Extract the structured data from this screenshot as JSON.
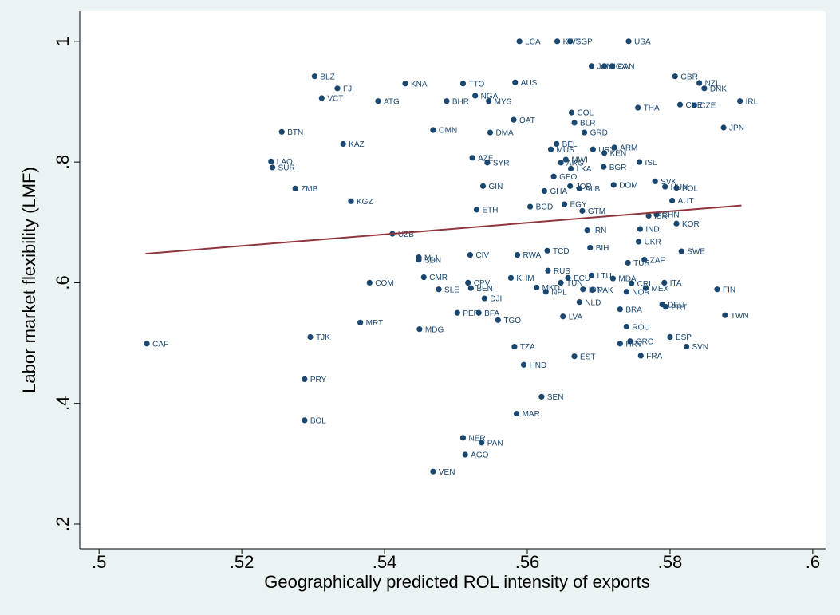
{
  "chart_data": {
    "type": "scatter",
    "x_label": "Geographically predicted ROL intensity of exports",
    "y_label": "Labor market flexibility (LMF)",
    "color": "#1a476f",
    "xlim": [
      0.4973,
      0.6018
    ],
    "ylim": [
      0.159,
      1.05
    ],
    "xticks": [
      {
        "value": 0.5,
        "label": ".5"
      },
      {
        "value": 0.52,
        "label": ".52"
      },
      {
        "value": 0.54,
        "label": ".54"
      },
      {
        "value": 0.56,
        "label": ".56"
      },
      {
        "value": 0.58,
        "label": ".58"
      },
      {
        "value": 0.6,
        "label": ".6"
      }
    ],
    "yticks": [
      {
        "value": 0.2,
        "label": ".2"
      },
      {
        "value": 0.4,
        "label": ".4"
      },
      {
        "value": 0.6,
        "label": ".6"
      },
      {
        "value": 0.8,
        "label": ".8"
      },
      1
    ],
    "fit_line": {
      "color": "#90353b",
      "x": [
        0.5065,
        0.59
      ],
      "values": [
        0.648,
        0.728
      ]
    },
    "labels": [
      "CAF",
      "TJK",
      "PRY",
      "BOL",
      "MRT",
      "COM",
      "MDG",
      "UZB",
      "MLI",
      "SDN",
      "CMR",
      "SLE",
      "CIV",
      "CPV",
      "BEN",
      "DJI",
      "PER",
      "BFA",
      "TGO",
      "NER",
      "PAN",
      "AGO",
      "VEN",
      "MAR",
      "SEN",
      "HND",
      "TZA",
      "EST",
      "KHM",
      "RWA",
      "TCD",
      "RUS",
      "MKD",
      "NPL",
      "ECU",
      "TUN",
      "LTU",
      "MDA",
      "IDN",
      "PAK",
      "NLD",
      "CRI",
      "NOR",
      "MEX",
      "ITA",
      "FIN",
      "DEU",
      "PRT",
      "BRA",
      "LVA",
      "ROU",
      "HRV",
      "GRC",
      "FRA",
      "ESP",
      "SVN",
      "TWN",
      "TUR",
      "ZAF",
      "SWE",
      "UKR",
      "BIH",
      "IRN",
      "IND",
      "KOR",
      "CHN",
      "ISR",
      "AUT",
      "GTM",
      "EGY",
      "BGD",
      "ETH",
      "GHA",
      "JOR",
      "ALB",
      "DOM",
      "SVK",
      "HUN",
      "POL",
      "GIN",
      "GEO",
      "LKA",
      "BGR",
      "ISL",
      "AZE",
      "SYR",
      "ARG",
      "MWI",
      "URY",
      "KEN",
      "ARM",
      "MUS",
      "BEL",
      "GRD",
      "BLR",
      "COL",
      "QAT",
      "DMA",
      "OMN",
      "BTN",
      "KAZ",
      "LAO",
      "SUR",
      "ZMB",
      "KGZ",
      "BLZ",
      "FJI",
      "VCT",
      "ATG",
      "KNA",
      "TTO",
      "NGA",
      "BHR",
      "MYS",
      "AUS",
      "LCA",
      "KWT",
      "SGP",
      "USA",
      "JAM",
      "UGA",
      "CAN",
      "THA",
      "GBR",
      "NZL",
      "DNK",
      "CHE",
      "CZE",
      "IRL",
      "JPN"
    ],
    "x": [
      0.5067,
      0.5296,
      0.5288,
      0.5288,
      0.5366,
      0.5379,
      0.5449,
      0.5411,
      0.5448,
      0.5448,
      0.5455,
      0.5476,
      0.552,
      0.5517,
      0.5521,
      0.554,
      0.5502,
      0.5532,
      0.5559,
      0.551,
      0.5536,
      0.5513,
      0.5468,
      0.5585,
      0.562,
      0.5595,
      0.5582,
      0.5666,
      0.5577,
      0.5586,
      0.5628,
      0.5629,
      0.5613,
      0.5626,
      0.5657,
      0.5647,
      0.569,
      0.572,
      0.5678,
      0.5691,
      0.5673,
      0.5746,
      0.5739,
      0.5766,
      0.5792,
      0.5866,
      0.5789,
      0.5794,
      0.573,
      0.565,
      0.5739,
      0.573,
      0.5744,
      0.5759,
      0.58,
      0.5823,
      0.5877,
      0.5741,
      0.5764,
      0.5816,
      0.5756,
      0.5688,
      0.5684,
      0.5758,
      0.5809,
      0.5781,
      0.577,
      0.5803,
      0.5677,
      0.5652,
      0.5604,
      0.5529,
      0.5624,
      0.566,
      0.5673,
      0.5721,
      0.5779,
      0.5793,
      0.5809,
      0.5538,
      0.5637,
      0.5661,
      0.5707,
      0.5757,
      0.5523,
      0.5544,
      0.5647,
      0.5654,
      0.5692,
      0.5708,
      0.5722,
      0.5633,
      0.5641,
      0.568,
      0.5666,
      0.5662,
      0.5581,
      0.5548,
      0.5468,
      0.5256,
      0.5342,
      0.5241,
      0.5243,
      0.5275,
      0.5353,
      0.5302,
      0.5334,
      0.5312,
      0.5391,
      0.5429,
      0.551,
      0.5527,
      0.5487,
      0.5546,
      0.5583,
      0.5589,
      0.5642,
      0.566,
      0.5742,
      0.569,
      0.5708,
      0.5719,
      0.5755,
      0.5807,
      0.5841,
      0.5848,
      0.5814,
      0.5834,
      0.5898,
      0.5875
    ],
    "values": [
      0.499,
      0.51,
      0.44,
      0.372,
      0.534,
      0.6,
      0.523,
      0.681,
      0.642,
      0.638,
      0.609,
      0.589,
      0.646,
      0.6,
      0.591,
      0.574,
      0.55,
      0.55,
      0.538,
      0.343,
      0.335,
      0.315,
      0.287,
      0.383,
      0.411,
      0.464,
      0.494,
      0.478,
      0.608,
      0.646,
      0.653,
      0.62,
      0.592,
      0.585,
      0.608,
      0.6,
      0.612,
      0.607,
      0.589,
      0.588,
      0.568,
      0.599,
      0.585,
      0.591,
      0.6,
      0.589,
      0.564,
      0.56,
      0.556,
      0.544,
      0.527,
      0.499,
      0.503,
      0.479,
      0.51,
      0.494,
      0.546,
      0.633,
      0.638,
      0.652,
      0.668,
      0.658,
      0.687,
      0.689,
      0.698,
      0.713,
      0.711,
      0.736,
      0.719,
      0.73,
      0.726,
      0.721,
      0.752,
      0.76,
      0.756,
      0.762,
      0.768,
      0.759,
      0.757,
      0.76,
      0.776,
      0.789,
      0.792,
      0.8,
      0.807,
      0.799,
      0.799,
      0.804,
      0.821,
      0.815,
      0.824,
      0.821,
      0.83,
      0.849,
      0.865,
      0.882,
      0.87,
      0.849,
      0.853,
      0.85,
      0.83,
      0.801,
      0.791,
      0.756,
      0.735,
      0.942,
      0.922,
      0.906,
      0.901,
      0.93,
      0.93,
      0.91,
      0.901,
      0.901,
      0.932,
      1,
      1,
      1,
      1,
      0.959,
      0.959,
      0.959,
      0.89,
      0.942,
      0.931,
      0.922,
      0.895,
      0.894,
      0.901,
      0.857
    ]
  }
}
